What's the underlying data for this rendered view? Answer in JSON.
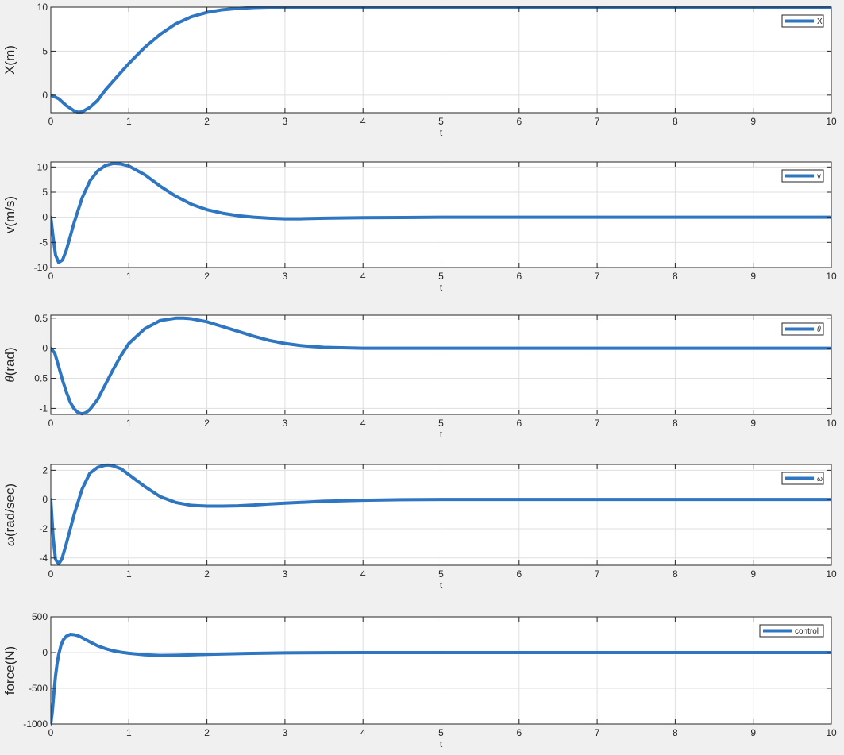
{
  "colors": {
    "figure_bg": "#f0f0f0",
    "axes_bg": "#ffffff",
    "grid": "#dfdfdf",
    "axis": "#262626",
    "series": "#2e75c2"
  },
  "chart_data": [
    {
      "type": "line",
      "xlabel": "t",
      "ylabel": "X(m)",
      "xlim": [
        0,
        10
      ],
      "ylim": [
        -2,
        10
      ],
      "xticks": [
        0,
        1,
        2,
        3,
        4,
        5,
        6,
        7,
        8,
        9,
        10
      ],
      "yticks": [
        0,
        5,
        10
      ],
      "grid": true,
      "legend_position": "top-right",
      "series": [
        {
          "name": "X",
          "x": [
            0,
            0.1,
            0.2,
            0.3,
            0.35,
            0.4,
            0.5,
            0.6,
            0.7,
            0.8,
            1.0,
            1.2,
            1.4,
            1.6,
            1.8,
            2.0,
            2.2,
            2.4,
            2.6,
            2.8,
            3.0,
            3.5,
            4,
            5,
            6,
            7,
            8,
            9,
            10
          ],
          "y": [
            0,
            -0.4,
            -1.2,
            -1.8,
            -1.95,
            -1.9,
            -1.4,
            -0.6,
            0.6,
            1.6,
            3.6,
            5.4,
            6.9,
            8.1,
            8.9,
            9.4,
            9.7,
            9.85,
            9.95,
            10,
            10,
            10,
            10,
            10,
            10,
            10,
            10,
            10,
            10
          ]
        }
      ]
    },
    {
      "type": "line",
      "xlabel": "t",
      "ylabel": "v(m/s)",
      "xlim": [
        0,
        10
      ],
      "ylim": [
        -10,
        11
      ],
      "xticks": [
        0,
        1,
        2,
        3,
        4,
        5,
        6,
        7,
        8,
        9,
        10
      ],
      "yticks": [
        -10,
        -5,
        0,
        5,
        10
      ],
      "grid": true,
      "legend_position": "top-right",
      "series": [
        {
          "name": "v",
          "x": [
            0,
            0.03,
            0.06,
            0.1,
            0.15,
            0.2,
            0.3,
            0.4,
            0.5,
            0.6,
            0.7,
            0.8,
            0.9,
            1.0,
            1.2,
            1.4,
            1.6,
            1.8,
            2.0,
            2.2,
            2.4,
            2.6,
            2.8,
            3.0,
            3.2,
            3.5,
            4,
            5,
            6,
            7,
            8,
            9,
            10
          ],
          "y": [
            0,
            -4,
            -7.5,
            -9,
            -8.5,
            -6.5,
            -1,
            3.8,
            7.2,
            9.2,
            10.3,
            10.7,
            10.6,
            10.2,
            8.5,
            6.2,
            4.2,
            2.6,
            1.5,
            0.8,
            0.3,
            0,
            -0.2,
            -0.3,
            -0.3,
            -0.2,
            -0.1,
            0,
            0,
            0,
            0,
            0,
            0
          ]
        }
      ]
    },
    {
      "type": "line",
      "xlabel": "t",
      "ylabel": "θ(rad)",
      "xlim": [
        0,
        10
      ],
      "ylim": [
        -1.1,
        0.55
      ],
      "xticks": [
        0,
        1,
        2,
        3,
        4,
        5,
        6,
        7,
        8,
        9,
        10
      ],
      "yticks": [
        -1,
        -0.5,
        0,
        0.5
      ],
      "grid": true,
      "legend_position": "top-right",
      "series": [
        {
          "name": "θ",
          "x": [
            0,
            0.05,
            0.1,
            0.15,
            0.2,
            0.25,
            0.3,
            0.35,
            0.4,
            0.45,
            0.5,
            0.6,
            0.7,
            0.8,
            0.9,
            1.0,
            1.2,
            1.4,
            1.6,
            1.7,
            1.8,
            2.0,
            2.2,
            2.4,
            2.6,
            2.8,
            3.0,
            3.2,
            3.5,
            4,
            4.5,
            5,
            6,
            7,
            8,
            9,
            10
          ],
          "y": [
            0,
            -0.08,
            -0.3,
            -0.53,
            -0.73,
            -0.9,
            -1.01,
            -1.07,
            -1.09,
            -1.07,
            -1.02,
            -0.85,
            -0.6,
            -0.35,
            -0.12,
            0.08,
            0.32,
            0.46,
            0.5,
            0.5,
            0.49,
            0.44,
            0.36,
            0.28,
            0.2,
            0.13,
            0.08,
            0.045,
            0.015,
            0,
            0,
            0,
            0,
            0,
            0,
            0,
            0
          ]
        }
      ]
    },
    {
      "type": "line",
      "xlabel": "t",
      "ylabel": "ω(rad/sec)",
      "xlim": [
        0,
        10
      ],
      "ylim": [
        -4.5,
        2.4
      ],
      "xticks": [
        0,
        1,
        2,
        3,
        4,
        5,
        6,
        7,
        8,
        9,
        10
      ],
      "yticks": [
        -4,
        -2,
        0,
        2
      ],
      "grid": true,
      "legend_position": "top-right",
      "series": [
        {
          "name": "ω",
          "x": [
            0,
            0.03,
            0.06,
            0.1,
            0.14,
            0.2,
            0.3,
            0.4,
            0.5,
            0.6,
            0.7,
            0.75,
            0.8,
            0.9,
            1.0,
            1.2,
            1.4,
            1.6,
            1.8,
            2.0,
            2.2,
            2.4,
            2.6,
            2.8,
            3.0,
            3.5,
            4,
            4.5,
            5,
            6,
            7,
            8,
            9,
            10
          ],
          "y": [
            0,
            -2.6,
            -4.1,
            -4.4,
            -4.1,
            -3,
            -1,
            0.7,
            1.8,
            2.2,
            2.35,
            2.35,
            2.3,
            2.1,
            1.7,
            0.9,
            0.2,
            -0.2,
            -0.4,
            -0.45,
            -0.45,
            -0.43,
            -0.38,
            -0.3,
            -0.25,
            -0.12,
            -0.05,
            -0.01,
            0,
            0,
            0,
            0,
            0,
            0
          ]
        }
      ]
    },
    {
      "type": "line",
      "xlabel": "t",
      "ylabel": "force(N)",
      "xlim": [
        0,
        10
      ],
      "ylim": [
        -1000,
        500
      ],
      "xticks": [
        0,
        1,
        2,
        3,
        4,
        5,
        6,
        7,
        8,
        9,
        10
      ],
      "yticks": [
        -1000,
        -500,
        0,
        500
      ],
      "grid": true,
      "legend_position": "top-right",
      "series": [
        {
          "name": "control",
          "x": [
            0,
            0.02,
            0.04,
            0.06,
            0.08,
            0.1,
            0.13,
            0.16,
            0.2,
            0.25,
            0.3,
            0.35,
            0.4,
            0.5,
            0.6,
            0.7,
            0.8,
            0.9,
            1.0,
            1.2,
            1.4,
            1.6,
            1.8,
            2.0,
            2.5,
            3.0,
            3.5,
            4,
            5,
            6,
            7,
            8,
            9,
            10
          ],
          "y": [
            -1000,
            -820,
            -560,
            -330,
            -160,
            -30,
            100,
            180,
            230,
            255,
            250,
            235,
            210,
            150,
            95,
            55,
            25,
            5,
            -10,
            -30,
            -40,
            -38,
            -32,
            -25,
            -12,
            -4,
            -1,
            0,
            0,
            0,
            0,
            0,
            0,
            0
          ]
        }
      ]
    }
  ]
}
